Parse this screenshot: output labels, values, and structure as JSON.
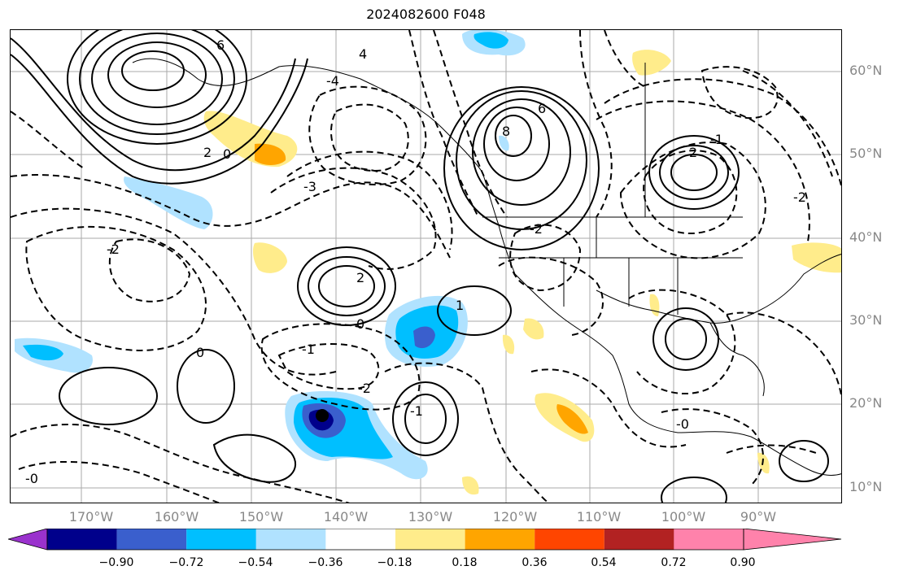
{
  "title": "2024082600 F048",
  "lat_labels": [
    "60°N",
    "50°N",
    "40°N",
    "30°N",
    "20°N",
    "10°N"
  ],
  "lon_labels": [
    "170°W",
    "160°W",
    "150°W",
    "140°W",
    "130°W",
    "120°W",
    "110°W",
    "100°W",
    "90°W"
  ],
  "contour_labels": [
    "6",
    "4",
    "2",
    "0",
    "-2",
    "-3",
    "-1",
    "-4",
    "1",
    "2",
    "0",
    "-0",
    "0",
    "-1",
    "-2",
    "6",
    "8",
    "-2",
    "2",
    "-1",
    "-2",
    "-0"
  ],
  "colorbar": {
    "ticks": [
      "−0.90",
      "−0.72",
      "−0.54",
      "−0.36",
      "−0.18",
      "0.18",
      "0.36",
      "0.54",
      "0.72",
      "0.90"
    ],
    "colors": [
      "#9a32cd",
      "#00008b",
      "#3a5fcd",
      "#00bfff",
      "#b0e2ff",
      "#ffffff",
      "#ffec8b",
      "#ffa500",
      "#ff4500",
      "#b22222",
      "#ff82ab"
    ]
  }
}
